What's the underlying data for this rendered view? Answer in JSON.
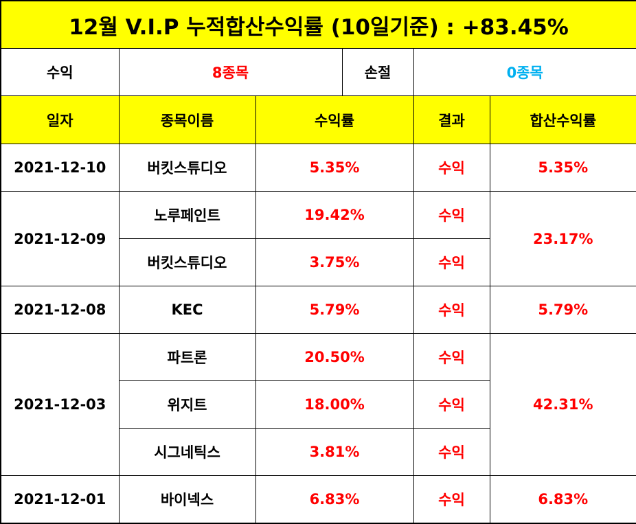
{
  "title": "12월 V.I.P 누적합산수익률 (10일기준) : +83.45%",
  "summary": {
    "profit_label": "수익",
    "profit_value": "8종목",
    "loss_label": "손절",
    "loss_value": "0종목"
  },
  "headers": {
    "date": "일자",
    "stock": "종목이름",
    "return": "수익률",
    "result": "결과",
    "total": "합산수익률"
  },
  "groups": [
    {
      "date": "2021-12-10",
      "total": "5.35%",
      "rows": [
        {
          "stock": "버킷스튜디오",
          "return": "5.35%",
          "result": "수익"
        }
      ]
    },
    {
      "date": "2021-12-09",
      "total": "23.17%",
      "rows": [
        {
          "stock": "노루페인트",
          "return": "19.42%",
          "result": "수익"
        },
        {
          "stock": "버킷스튜디오",
          "return": "3.75%",
          "result": "수익"
        }
      ]
    },
    {
      "date": "2021-12-08",
      "total": "5.79%",
      "rows": [
        {
          "stock": "KEC",
          "return": "5.79%",
          "result": "수익"
        }
      ]
    },
    {
      "date": "2021-12-03",
      "total": "42.31%",
      "rows": [
        {
          "stock": "파트론",
          "return": "20.50%",
          "result": "수익"
        },
        {
          "stock": "위지트",
          "return": "18.00%",
          "result": "수익"
        },
        {
          "stock": "시그네틱스",
          "return": "3.81%",
          "result": "수익"
        }
      ]
    },
    {
      "date": "2021-12-01",
      "total": "6.83%",
      "rows": [
        {
          "stock": "바이넥스",
          "return": "6.83%",
          "result": "수익"
        }
      ]
    }
  ],
  "colors": {
    "header_bg": "#ffff00",
    "profit": "#ff0000",
    "loss": "#00b0f0"
  }
}
